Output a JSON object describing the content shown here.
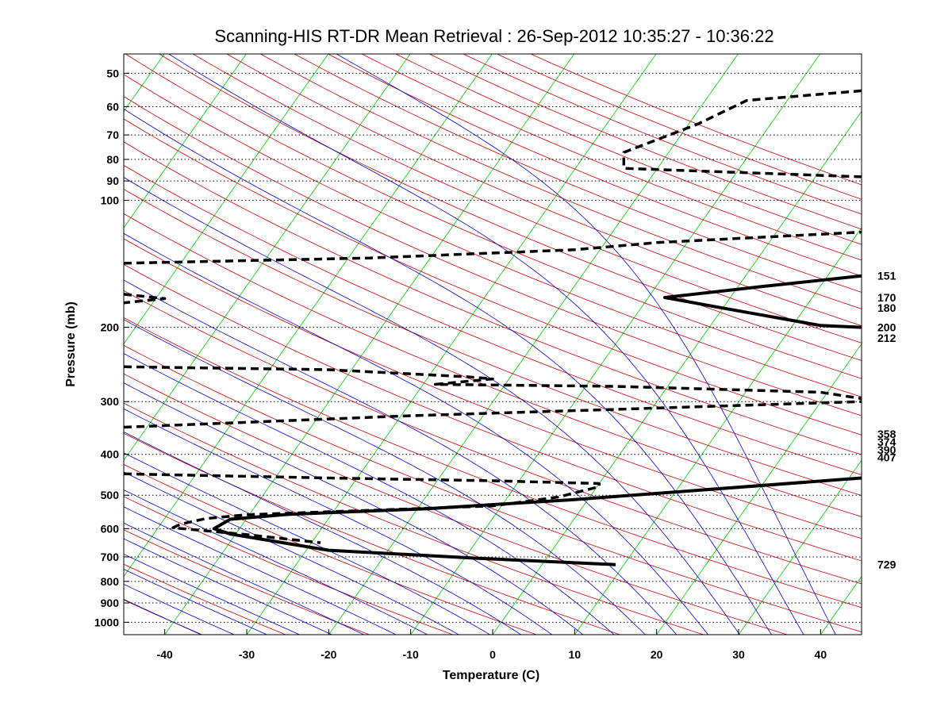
{
  "chart_data": {
    "type": "line",
    "subtype": "skew-T log-P diagram",
    "title": "Scanning-HIS RT-DR Mean Retrieval : 26-Sep-2012 10:35:27 - 10:36:22",
    "xlabel": "Temperature (C)",
    "ylabel": "Pressure (mb)",
    "xlim": [
      -45,
      45
    ],
    "ylim": [
      1070,
      45
    ],
    "y_scale": "log",
    "grid": "horizontal dotted lines at pressure ticks",
    "x_ticks": [
      "-40",
      "-30",
      "-20",
      "-10",
      "0",
      "10",
      "20",
      "30",
      "40"
    ],
    "y_ticks": [
      "50",
      "60",
      "70",
      "80",
      "90",
      "100",
      "200",
      "300",
      "400",
      "500",
      "600",
      "700",
      "800",
      "900",
      "1000"
    ],
    "background_lines": {
      "isotherms_skewed": {
        "color": "#00cc00",
        "step_c": 10
      },
      "dry_adiabats": {
        "color": "#cc0000"
      },
      "moist_adiabats": {
        "color": "#0000cc"
      }
    },
    "series": [
      {
        "style": "solid",
        "color": "#000000",
        "points": [
          {
            "t": 15,
            "p": 730
          },
          {
            "t": -2,
            "p": 705
          },
          {
            "t": -20,
            "p": 675
          },
          {
            "t": -32,
            "p": 618
          },
          {
            "t": -34,
            "p": 600
          },
          {
            "t": -32,
            "p": 570
          },
          {
            "t": -25,
            "p": 555
          },
          {
            "t": -8,
            "p": 538
          },
          {
            "t": 10,
            "p": 512
          },
          {
            "t": 45,
            "p": 455
          }
        ]
      },
      {
        "style": "solid",
        "color": "#000000",
        "points": [
          {
            "t": 45,
            "p": 151
          },
          {
            "t": 33,
            "p": 160
          },
          {
            "t": 21,
            "p": 170
          },
          {
            "t": 28,
            "p": 180
          },
          {
            "t": 40,
            "p": 198
          },
          {
            "t": 45,
            "p": 200
          }
        ]
      },
      {
        "style": "dashed",
        "color": "#000000",
        "points": [
          {
            "t": 45,
            "p": 55
          },
          {
            "t": 31,
            "p": 58
          },
          {
            "t": 25,
            "p": 66
          },
          {
            "t": 16,
            "p": 77
          },
          {
            "t": 16,
            "p": 84
          },
          {
            "t": 45,
            "p": 88
          }
        ]
      },
      {
        "style": "dashed",
        "color": "#000000",
        "points": [
          {
            "t": -45,
            "p": 141
          },
          {
            "t": -15,
            "p": 137
          },
          {
            "t": 10,
            "p": 131
          },
          {
            "t": 20,
            "p": 126
          },
          {
            "t": 45,
            "p": 119
          }
        ]
      },
      {
        "style": "dashed",
        "color": "#000000",
        "points": [
          {
            "t": -45,
            "p": 167
          },
          {
            "t": -40,
            "p": 171
          },
          {
            "t": -45,
            "p": 175
          }
        ]
      },
      {
        "style": "dashed",
        "color": "#000000",
        "points": [
          {
            "t": -45,
            "p": 248
          },
          {
            "t": -20,
            "p": 252
          },
          {
            "t": -3,
            "p": 262
          },
          {
            "t": 0,
            "p": 265
          },
          {
            "t": -7,
            "p": 273
          },
          {
            "t": 15,
            "p": 276
          },
          {
            "t": 40,
            "p": 285
          },
          {
            "t": 45,
            "p": 295
          }
        ]
      },
      {
        "style": "dashed",
        "color": "#000000",
        "points": [
          {
            "t": -45,
            "p": 345
          },
          {
            "t": -10,
            "p": 324
          },
          {
            "t": 15,
            "p": 313
          },
          {
            "t": 45,
            "p": 300
          }
        ]
      },
      {
        "style": "dashed",
        "color": "#000000",
        "points": [
          {
            "t": -45,
            "p": 445
          },
          {
            "t": -20,
            "p": 455
          },
          {
            "t": 0,
            "p": 462
          },
          {
            "t": 13,
            "p": 469
          },
          {
            "t": 13,
            "p": 477
          },
          {
            "t": 8,
            "p": 505
          },
          {
            "t": 0,
            "p": 530
          },
          {
            "t": -30,
            "p": 556
          },
          {
            "t": -35,
            "p": 568
          },
          {
            "t": -38,
            "p": 585
          },
          {
            "t": -39,
            "p": 597
          },
          {
            "t": -30,
            "p": 620
          },
          {
            "t": -21,
            "p": 648
          }
        ]
      }
    ],
    "annotations": [
      "151",
      "170",
      "180",
      "200",
      "212",
      "358",
      "374",
      "390",
      "407",
      "729"
    ]
  }
}
